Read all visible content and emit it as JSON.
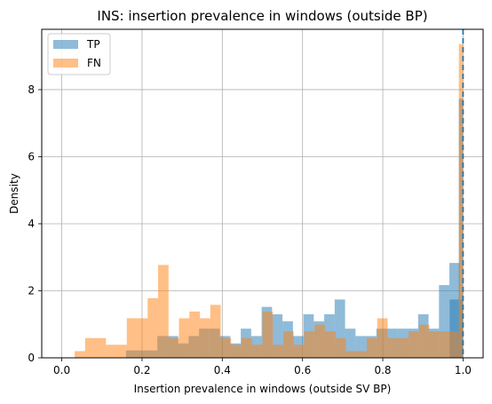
{
  "chart_data": {
    "type": "bar",
    "title": "INS: insertion prevalence in windows (outside BP)",
    "xlabel": "Insertion prevalence in windows (outside SV BP)",
    "ylabel": "Density",
    "xlim": [
      -0.05,
      1.05
    ],
    "ylim": [
      0,
      9.8
    ],
    "xticks": [
      0.0,
      0.2,
      0.4,
      0.6,
      0.8,
      1.0
    ],
    "xtick_labels": [
      "0.0",
      "0.2",
      "0.4",
      "0.6",
      "0.8",
      "1.0"
    ],
    "yticks": [
      0,
      2,
      4,
      6,
      8
    ],
    "ytick_labels": [
      "0",
      "2",
      "4",
      "6",
      "8"
    ],
    "grid": true,
    "legend_position": "top-left",
    "reference_line": {
      "x": 1.0,
      "style": "dashed"
    },
    "series": [
      {
        "name": "TP",
        "color": "#1f77b4",
        "bins": [
          [
            0.16,
            0.186,
            0.22
          ],
          [
            0.186,
            0.212,
            0.22
          ],
          [
            0.212,
            0.238,
            0.22
          ],
          [
            0.238,
            0.264,
            0.65
          ],
          [
            0.264,
            0.29,
            0.65
          ],
          [
            0.29,
            0.316,
            0.43
          ],
          [
            0.316,
            0.342,
            0.65
          ],
          [
            0.342,
            0.368,
            0.87
          ],
          [
            0.368,
            0.394,
            0.87
          ],
          [
            0.394,
            0.42,
            0.65
          ],
          [
            0.42,
            0.446,
            0.43
          ],
          [
            0.446,
            0.472,
            0.87
          ],
          [
            0.472,
            0.498,
            0.65
          ],
          [
            0.498,
            0.524,
            1.52
          ],
          [
            0.524,
            0.55,
            1.3
          ],
          [
            0.55,
            0.576,
            1.09
          ],
          [
            0.576,
            0.602,
            0.65
          ],
          [
            0.602,
            0.628,
            1.3
          ],
          [
            0.628,
            0.654,
            1.09
          ],
          [
            0.654,
            0.68,
            1.3
          ],
          [
            0.68,
            0.706,
            1.74
          ],
          [
            0.706,
            0.732,
            0.87
          ],
          [
            0.732,
            0.758,
            0.65
          ],
          [
            0.758,
            0.784,
            0.65
          ],
          [
            0.784,
            0.81,
            0.87
          ],
          [
            0.81,
            0.836,
            0.87
          ],
          [
            0.836,
            0.862,
            0.87
          ],
          [
            0.862,
            0.888,
            0.87
          ],
          [
            0.888,
            0.914,
            1.3
          ],
          [
            0.914,
            0.94,
            0.87
          ],
          [
            0.94,
            0.966,
            2.17
          ],
          [
            0.966,
            0.992,
            2.83
          ],
          [
            0.992,
            1.0,
            1.74
          ],
          [
            0.9665,
            0.9895,
            1.74
          ],
          [
            0.9895,
            1.0,
            7.73
          ]
        ]
      },
      {
        "name": "FN",
        "color": "#ff7f0e",
        "bins": [
          [
            0.032,
            0.058,
            0.2
          ],
          [
            0.058,
            0.084,
            0.59
          ],
          [
            0.084,
            0.11,
            0.59
          ],
          [
            0.11,
            0.136,
            0.39
          ],
          [
            0.136,
            0.162,
            0.39
          ],
          [
            0.162,
            0.188,
            1.18
          ],
          [
            0.188,
            0.214,
            1.18
          ],
          [
            0.214,
            0.24,
            1.78
          ],
          [
            0.24,
            0.266,
            2.77
          ],
          [
            0.266,
            0.292,
            0.59
          ],
          [
            0.292,
            0.318,
            1.18
          ],
          [
            0.318,
            0.344,
            1.38
          ],
          [
            0.344,
            0.37,
            1.18
          ],
          [
            0.37,
            0.396,
            1.58
          ],
          [
            0.396,
            0.422,
            0.59
          ],
          [
            0.422,
            0.448,
            0.39
          ],
          [
            0.448,
            0.474,
            0.59
          ],
          [
            0.474,
            0.5,
            0.39
          ],
          [
            0.5,
            0.526,
            1.38
          ],
          [
            0.526,
            0.552,
            0.39
          ],
          [
            0.552,
            0.578,
            0.79
          ],
          [
            0.578,
            0.604,
            0.39
          ],
          [
            0.604,
            0.63,
            0.79
          ],
          [
            0.63,
            0.656,
            0.99
          ],
          [
            0.656,
            0.682,
            0.79
          ],
          [
            0.682,
            0.708,
            0.59
          ],
          [
            0.708,
            0.734,
            0.2
          ],
          [
            0.734,
            0.76,
            0.2
          ],
          [
            0.76,
            0.786,
            0.59
          ],
          [
            0.786,
            0.812,
            1.18
          ],
          [
            0.812,
            0.838,
            0.59
          ],
          [
            0.838,
            0.864,
            0.59
          ],
          [
            0.864,
            0.89,
            0.79
          ],
          [
            0.89,
            0.916,
            0.99
          ],
          [
            0.916,
            0.942,
            0.79
          ],
          [
            0.942,
            0.968,
            0.79
          ],
          [
            0.968,
            0.9775,
            0.79
          ],
          [
            0.9775,
            0.9895,
            0.79
          ],
          [
            0.9895,
            1.0,
            9.36
          ]
        ]
      }
    ]
  }
}
